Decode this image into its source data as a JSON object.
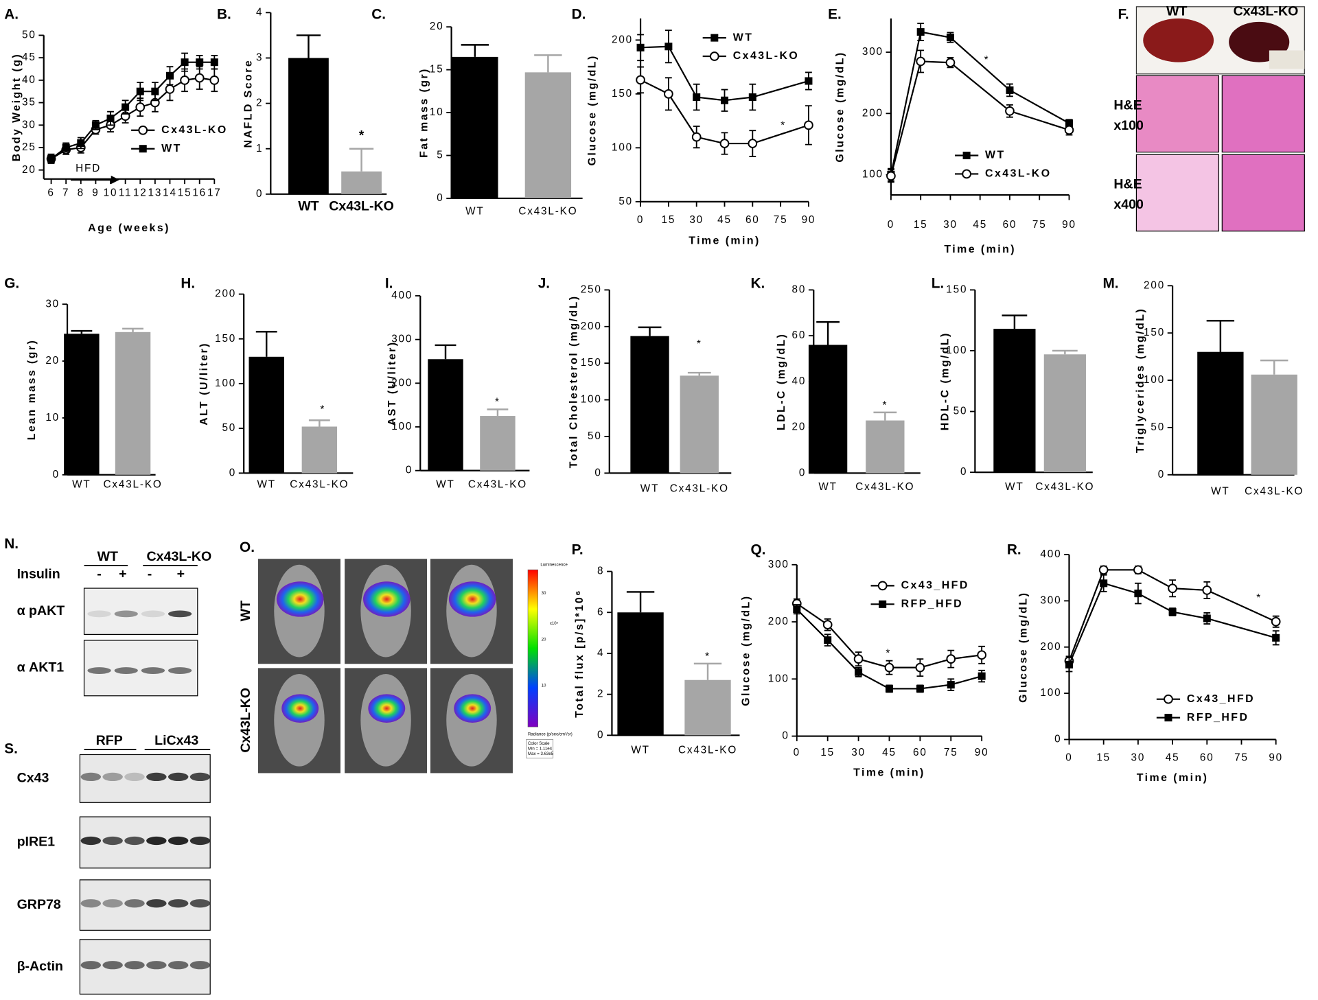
{
  "chart_data": [
    {
      "panel": "A.",
      "type": "line",
      "xlabel": "Age (weeks)",
      "ylabel": "Body Weight (g)",
      "x": [
        6,
        7,
        8,
        9,
        10,
        11,
        12,
        13,
        14,
        15,
        16,
        17
      ],
      "xlim": [
        5.5,
        17
      ],
      "xticks": [
        6,
        7,
        8,
        9,
        10,
        11,
        12,
        13,
        14,
        15,
        16,
        17
      ],
      "ylim": [
        18,
        50
      ],
      "yticks": [
        20,
        25,
        30,
        35,
        40,
        45,
        50
      ],
      "series": [
        {
          "name": "Cx43L-KO",
          "color": "#000000",
          "marker": "circle-open",
          "values": [
            22.5,
            24.5,
            25,
            29,
            30,
            32,
            34,
            35,
            38,
            40,
            40.5,
            40
          ],
          "errors": [
            1,
            1,
            1.2,
            1,
            1.5,
            1.5,
            2,
            2,
            2.5,
            2.5,
            2.5,
            2.5
          ]
        },
        {
          "name": "WT",
          "color": "#000000",
          "marker": "square",
          "values": [
            22.5,
            25,
            26,
            30,
            31.5,
            34,
            37.5,
            37.5,
            41,
            44,
            44,
            44
          ],
          "errors": [
            1,
            1,
            1.2,
            1,
            1.5,
            1.5,
            2,
            2,
            2,
            2,
            1.5,
            1.5
          ]
        }
      ],
      "annotations": [
        "HFD"
      ]
    },
    {
      "panel": "B.",
      "type": "bar",
      "ylabel": "NAFLD Score",
      "categories": [
        "WT",
        "Cx43L-KO"
      ],
      "values": [
        3,
        0.5
      ],
      "errors": [
        0.5,
        0.5
      ],
      "colors": [
        "#000000",
        "#a6a6a6"
      ],
      "ylim": [
        0,
        4
      ],
      "yticks": [
        0,
        1,
        2,
        3,
        4
      ],
      "annotations": [
        "*"
      ]
    },
    {
      "panel": "C.",
      "type": "bar",
      "ylabel": "Fat mass (gr)",
      "categories": [
        "WT",
        "Cx43L-KO"
      ],
      "values": [
        16.5,
        14.7
      ],
      "errors": [
        1.4,
        2
      ],
      "colors": [
        "#000000",
        "#a6a6a6"
      ],
      "ylim": [
        0,
        20
      ],
      "yticks": [
        0,
        5,
        10,
        15,
        20
      ]
    },
    {
      "panel": "D.",
      "type": "line",
      "xlabel": "Time (min)",
      "ylabel": "Glucose (mg/dL)",
      "x": [
        0,
        15,
        30,
        45,
        60,
        90
      ],
      "xlim": [
        0,
        90
      ],
      "xticks": [
        0,
        15,
        30,
        45,
        60,
        75,
        90
      ],
      "ylim": [
        50,
        220
      ],
      "yticks": [
        50,
        100,
        150,
        200
      ],
      "series": [
        {
          "name": "WT",
          "color": "#000000",
          "marker": "square",
          "values": [
            193,
            194,
            147,
            144,
            147,
            162
          ],
          "errors": [
            12,
            15,
            12,
            10,
            12,
            8
          ]
        },
        {
          "name": "Cx43L-KO",
          "color": "#000000",
          "marker": "circle-open",
          "values": [
            163,
            150,
            110,
            104,
            104,
            121
          ],
          "errors": [
            12,
            15,
            10,
            10,
            12,
            18
          ]
        }
      ],
      "annotations": [
        "*"
      ]
    },
    {
      "panel": "E.",
      "type": "line",
      "xlabel": "Time (min)",
      "ylabel": "Glucose (mg/dL)",
      "x": [
        0,
        15,
        30,
        60,
        90
      ],
      "xlim": [
        0,
        90
      ],
      "xticks": [
        0,
        15,
        30,
        45,
        60,
        75,
        90
      ],
      "ylim": [
        67,
        355
      ],
      "yticks": [
        100,
        200,
        300
      ],
      "series": [
        {
          "name": "WT",
          "color": "#000000",
          "marker": "square",
          "values": [
            100,
            333,
            324,
            238,
            184
          ],
          "errors": [
            10,
            14,
            8,
            10,
            6
          ]
        },
        {
          "name": "Cx43L-KO",
          "color": "#000000",
          "marker": "circle-open",
          "values": [
            98,
            285,
            283,
            204,
            173
          ],
          "errors": [
            10,
            18,
            8,
            10,
            8
          ]
        }
      ],
      "annotations": [
        "*"
      ]
    },
    {
      "panel": "G.",
      "type": "bar",
      "ylabel": "Lean mass (gr)",
      "categories": [
        "WT",
        "Cx43L-KO"
      ],
      "values": [
        24.8,
        25.1
      ],
      "errors": [
        0.5,
        0.6
      ],
      "colors": [
        "#000000",
        "#a6a6a6"
      ],
      "ylim": [
        0,
        30
      ],
      "yticks": [
        0,
        10,
        20,
        30
      ]
    },
    {
      "panel": "H.",
      "type": "bar",
      "ylabel": "ALT (U/liter)",
      "categories": [
        "WT",
        "Cx43L-KO"
      ],
      "values": [
        130,
        52
      ],
      "errors": [
        28,
        7
      ],
      "colors": [
        "#000000",
        "#a6a6a6"
      ],
      "ylim": [
        0,
        200
      ],
      "yticks": [
        0,
        50,
        100,
        150,
        200
      ],
      "annotations": [
        "*"
      ]
    },
    {
      "panel": "I.",
      "type": "bar",
      "ylabel": "AST (U/liter)",
      "categories": [
        "WT",
        "Cx43L-KO"
      ],
      "values": [
        255,
        125
      ],
      "errors": [
        32,
        15
      ],
      "colors": [
        "#000000",
        "#a6a6a6"
      ],
      "ylim": [
        0,
        400
      ],
      "yticks": [
        0,
        100,
        200,
        300,
        400
      ],
      "annotations": [
        "*"
      ]
    },
    {
      "panel": "J.",
      "type": "bar",
      "ylabel": "Total Cholesterol (mg/dL)",
      "categories": [
        "WT",
        "Cx43L-KO"
      ],
      "values": [
        187,
        133
      ],
      "errors": [
        12,
        4
      ],
      "colors": [
        "#000000",
        "#a6a6a6"
      ],
      "ylim": [
        0,
        250
      ],
      "yticks": [
        0,
        50,
        100,
        150,
        200,
        250
      ],
      "annotations": [
        "*"
      ]
    },
    {
      "panel": "K.",
      "type": "bar",
      "ylabel": "LDL-C (mg/dL)",
      "categories": [
        "WT",
        "Cx43L-KO"
      ],
      "values": [
        56,
        23
      ],
      "errors": [
        10,
        3.5
      ],
      "colors": [
        "#000000",
        "#a6a6a6"
      ],
      "ylim": [
        0,
        80
      ],
      "yticks": [
        0,
        20,
        40,
        60,
        80
      ],
      "annotations": [
        "*"
      ]
    },
    {
      "panel": "L.",
      "type": "bar",
      "ylabel": "HDL-C (mg/dL)",
      "categories": [
        "WT",
        "Cx43L-KO"
      ],
      "values": [
        118,
        97
      ],
      "errors": [
        11,
        3
      ],
      "colors": [
        "#000000",
        "#a6a6a6"
      ],
      "ylim": [
        0,
        150
      ],
      "yticks": [
        0,
        50,
        100,
        150
      ]
    },
    {
      "panel": "M.",
      "type": "bar",
      "ylabel": "Triglycerides (mg/dL)",
      "categories": [
        "WT",
        "Cx43L-KO"
      ],
      "values": [
        130,
        106
      ],
      "errors": [
        33,
        15
      ],
      "colors": [
        "#000000",
        "#a6a6a6"
      ],
      "ylim": [
        0,
        200
      ],
      "yticks": [
        0,
        50,
        100,
        150,
        200
      ]
    },
    {
      "panel": "P.",
      "type": "bar",
      "ylabel": "Total flux [p/s]*10⁶",
      "categories": [
        "WT",
        "Cx43L-KO"
      ],
      "values": [
        6,
        2.7
      ],
      "errors": [
        1,
        0.8
      ],
      "colors": [
        "#000000",
        "#a6a6a6"
      ],
      "ylim": [
        0,
        8
      ],
      "yticks": [
        0,
        2,
        4,
        6,
        8
      ],
      "annotations": [
        "*"
      ]
    },
    {
      "panel": "Q.",
      "type": "line",
      "xlabel": "Time (min)",
      "ylabel": "Glucose (mg/dL)",
      "x": [
        0,
        15,
        30,
        45,
        60,
        75,
        90
      ],
      "xlim": [
        0,
        90
      ],
      "xticks": [
        0,
        15,
        30,
        45,
        60,
        75,
        90
      ],
      "ylim": [
        0,
        300
      ],
      "yticks": [
        0,
        100,
        200,
        300
      ],
      "series": [
        {
          "name": "Cx43_HFD",
          "color": "#000000",
          "marker": "circle-open",
          "values": [
            232,
            195,
            135,
            120,
            120,
            135,
            142
          ],
          "errors": [
            8,
            10,
            12,
            12,
            15,
            15,
            15
          ]
        },
        {
          "name": "RFP_HFD",
          "color": "#000000",
          "marker": "square",
          "values": [
            222,
            168,
            112,
            83,
            83,
            90,
            105
          ],
          "errors": [
            8,
            10,
            8,
            6,
            6,
            10,
            10
          ]
        }
      ],
      "annotations": [
        "*"
      ]
    },
    {
      "panel": "R.",
      "type": "line",
      "xlabel": "Time (min)",
      "ylabel": "Glucose (mg/dL)",
      "x": [
        0,
        15,
        30,
        45,
        60,
        90
      ],
      "xlim": [
        0,
        90
      ],
      "xticks": [
        0,
        15,
        30,
        45,
        60,
        75,
        90
      ],
      "ylim": [
        0,
        400
      ],
      "yticks": [
        0,
        100,
        200,
        300,
        400
      ],
      "series": [
        {
          "name": "Cx43_HFD",
          "color": "#000000",
          "marker": "circle-open",
          "values": [
            170,
            367,
            367,
            327,
            323,
            255
          ],
          "errors": [
            10,
            8,
            8,
            18,
            18,
            12
          ]
        },
        {
          "name": "RFP_HFD",
          "color": "#000000",
          "marker": "square",
          "values": [
            162,
            338,
            316,
            276,
            262,
            220
          ],
          "errors": [
            15,
            18,
            22,
            8,
            12,
            15
          ]
        }
      ],
      "annotations": [
        "*"
      ]
    }
  ],
  "panel_f": {
    "label": "F.",
    "columns": [
      "WT",
      "Cx43L-KO"
    ],
    "rows": [
      [
        "H&E",
        "x100"
      ],
      [
        "H&E",
        "x400"
      ]
    ]
  },
  "panel_n": {
    "label": "N.",
    "groups": [
      "WT",
      "Cx43L-KO"
    ],
    "treatment": "Insulin",
    "lanes": [
      "-",
      "+",
      "-",
      "+"
    ],
    "blots": [
      "α pAKT",
      "α AKT1"
    ]
  },
  "panel_o": {
    "label": "O.",
    "rows": [
      "WT",
      "Cx43L-KO"
    ],
    "scale_title": "Luminescence",
    "scale_ticks": [
      "30",
      "20",
      "10"
    ],
    "scale_unit": "x10⁵",
    "scale_quantity": "Radiance (p/sec/cm²/sr)",
    "scale_info": [
      "Color Scale",
      "Min = 1.11e4",
      "Max = 3.63e5"
    ]
  },
  "panel_s": {
    "label": "S.",
    "groups": [
      "RFP",
      "LiCx43"
    ],
    "blots": [
      "Cx43",
      "pIRE1",
      "GRP78",
      "β-Actin"
    ]
  }
}
